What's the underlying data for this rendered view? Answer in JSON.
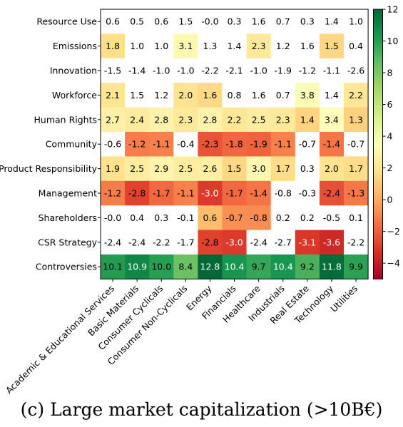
{
  "caption": "(c) Large market capitalization (>10B€)",
  "chart_data": {
    "type": "heatmap",
    "rows": [
      "Resource Use",
      "Emissions",
      "Innovation",
      "Workforce",
      "Human Rights",
      "Community",
      "Product Responsibility",
      "Management",
      "Shareholders",
      "CSR Strategy",
      "Controversies"
    ],
    "columns": [
      "Academic & Educational Services",
      "Basic Materials",
      "Consumer Cyclicals",
      "Consumer Non-Cyclicals",
      "Energy",
      "Financials",
      "Healthcare",
      "Industrials",
      "Real Estate",
      "Technology",
      "Utilities"
    ],
    "values": [
      [
        0.6,
        0.5,
        0.6,
        1.5,
        -0.0,
        0.3,
        1.6,
        0.7,
        0.3,
        1.4,
        1.0
      ],
      [
        1.8,
        1.0,
        1.0,
        3.1,
        1.3,
        1.4,
        2.3,
        1.2,
        1.6,
        1.5,
        0.4
      ],
      [
        -1.5,
        -1.4,
        -1.0,
        -1.0,
        -2.2,
        -2.1,
        -1.0,
        -1.9,
        -1.2,
        -1.1,
        -2.6
      ],
      [
        2.1,
        1.5,
        1.2,
        2.0,
        1.6,
        0.8,
        1.6,
        0.7,
        3.8,
        1.4,
        2.2
      ],
      [
        2.7,
        2.4,
        2.8,
        2.3,
        2.8,
        2.2,
        2.5,
        2.3,
        1.4,
        3.4,
        1.3
      ],
      [
        -0.6,
        -1.2,
        -1.1,
        -0.4,
        -2.3,
        -1.8,
        -1.9,
        -1.1,
        -0.7,
        -1.4,
        -0.7
      ],
      [
        1.9,
        2.5,
        2.9,
        2.5,
        2.6,
        1.5,
        3.0,
        1.7,
        0.3,
        2.0,
        1.7
      ],
      [
        -1.2,
        -2.8,
        -1.7,
        -1.1,
        -3.0,
        -1.7,
        -1.4,
        -0.8,
        -0.3,
        -2.4,
        -1.3
      ],
      [
        -0.0,
        0.4,
        0.3,
        -0.1,
        0.6,
        -0.7,
        -0.8,
        0.2,
        0.2,
        -0.5,
        0.1
      ],
      [
        -2.4,
        -2.4,
        -2.2,
        -1.7,
        -2.8,
        -3.0,
        -2.4,
        -2.7,
        -3.1,
        -3.6,
        -2.2
      ],
      [
        10.1,
        10.9,
        10.0,
        8.4,
        12.8,
        10.4,
        9.7,
        10.4,
        9.2,
        11.8,
        9.9
      ]
    ],
    "labels": [
      [
        "0.6",
        "0.5",
        "0.6",
        "1.5",
        "-0.0",
        "0.3",
        "1.6",
        "0.7",
        "0.3",
        "1.4",
        "1.0"
      ],
      [
        "1.8",
        "1.0",
        "1.0",
        "3.1",
        "1.3",
        "1.4",
        "2.3",
        "1.2",
        "1.6",
        "1.5",
        "0.4"
      ],
      [
        "-1.5",
        "-1.4",
        "-1.0",
        "-1.0",
        "-2.2",
        "-2.1",
        "-1.0",
        "-1.9",
        "-1.2",
        "-1.1",
        "-2.6"
      ],
      [
        "2.1",
        "1.5",
        "1.2",
        "2.0",
        "1.6",
        "0.8",
        "1.6",
        "0.7",
        "3.8",
        "1.4",
        "2.2"
      ],
      [
        "2.7",
        "2.4",
        "2.8",
        "2.3",
        "2.8",
        "2.2",
        "2.5",
        "2.3",
        "1.4",
        "3.4",
        "1.3"
      ],
      [
        "-0.6",
        "-1.2",
        "-1.1",
        "-0.4",
        "-2.3",
        "-1.8",
        "-1.9",
        "-1.1",
        "-0.7",
        "-1.4",
        "-0.7"
      ],
      [
        "1.9",
        "2.5",
        "2.9",
        "2.5",
        "2.6",
        "1.5",
        "3.0",
        "1.7",
        "0.3",
        "2.0",
        "1.7"
      ],
      [
        "-1.2",
        "-2.8",
        "-1.7",
        "-1.1",
        "-3.0",
        "-1.7",
        "-1.4",
        "-0.8",
        "-0.3",
        "-2.4",
        "-1.3"
      ],
      [
        "-0.0",
        "0.4",
        "0.3",
        "-0.1",
        "0.6",
        "-0.7",
        "-0.8",
        "0.2",
        "0.2",
        "-0.5",
        "0.1"
      ],
      [
        "-2.4",
        "-2.4",
        "-2.2",
        "-1.7",
        "-2.8",
        "-3.0",
        "-2.4",
        "-2.7",
        "-3.1",
        "-3.6",
        "-2.2"
      ],
      [
        "10.1",
        "10.9",
        "10.0",
        "8.4",
        "12.8",
        "10.4",
        "9.7",
        "10.4",
        "9.2",
        "11.8",
        "9.9"
      ]
    ],
    "blank_cells": [
      [
        0,
        0
      ],
      [
        0,
        1
      ],
      [
        0,
        2
      ],
      [
        0,
        3
      ],
      [
        0,
        4
      ],
      [
        0,
        5
      ],
      [
        0,
        6
      ],
      [
        0,
        7
      ],
      [
        0,
        8
      ],
      [
        0,
        9
      ],
      [
        0,
        10
      ],
      [
        1,
        1
      ],
      [
        1,
        2
      ],
      [
        1,
        4
      ],
      [
        1,
        5
      ],
      [
        1,
        7
      ],
      [
        1,
        8
      ],
      [
        1,
        10
      ],
      [
        2,
        0
      ],
      [
        2,
        1
      ],
      [
        2,
        2
      ],
      [
        2,
        3
      ],
      [
        2,
        4
      ],
      [
        2,
        5
      ],
      [
        2,
        6
      ],
      [
        2,
        7
      ],
      [
        2,
        8
      ],
      [
        2,
        9
      ],
      [
        2,
        10
      ],
      [
        3,
        1
      ],
      [
        3,
        2
      ],
      [
        3,
        5
      ],
      [
        3,
        6
      ],
      [
        3,
        7
      ],
      [
        3,
        9
      ],
      [
        5,
        0
      ],
      [
        5,
        3
      ],
      [
        5,
        8
      ],
      [
        5,
        10
      ],
      [
        6,
        8
      ],
      [
        7,
        7
      ],
      [
        7,
        8
      ],
      [
        8,
        0
      ],
      [
        8,
        1
      ],
      [
        8,
        2
      ],
      [
        8,
        3
      ],
      [
        8,
        7
      ],
      [
        8,
        8
      ],
      [
        8,
        9
      ],
      [
        8,
        10
      ],
      [
        9,
        0
      ],
      [
        9,
        1
      ],
      [
        9,
        2
      ],
      [
        9,
        3
      ],
      [
        9,
        6
      ],
      [
        9,
        7
      ],
      [
        9,
        10
      ]
    ],
    "colorscale": "RdYlGn",
    "color_range": [
      -5,
      12
    ],
    "colorbar_ticks": [
      "12",
      "10",
      "8",
      "6",
      "4",
      "2",
      "0",
      "−2",
      "−4"
    ],
    "colorbar_tick_values": [
      12,
      10,
      8,
      6,
      4,
      2,
      0,
      -2,
      -4
    ]
  }
}
